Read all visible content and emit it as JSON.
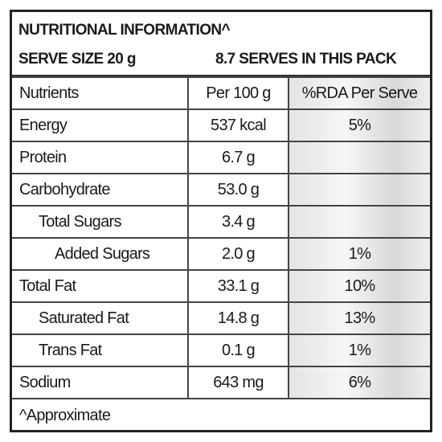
{
  "header": {
    "title": "NUTRITIONAL INFORMATION^",
    "serve_size": "SERVE SIZE 20 g",
    "serves": "8.7 SERVES IN THIS PACK"
  },
  "table": {
    "columns": [
      "Nutrients",
      "Per 100 g",
      "%RDA Per Serve"
    ],
    "rows": [
      [
        "Energy",
        "537 kcal",
        "5%"
      ],
      [
        "Protein",
        "6.7 g",
        null
      ],
      [
        "Carbohydrate",
        "53.0 g",
        null
      ],
      [
        "Total Sugars",
        "3.4 g",
        null
      ],
      [
        "Added Sugars",
        "2.0 g",
        "1%"
      ],
      [
        "Total Fat",
        "33.1 g",
        "10%"
      ],
      [
        "Saturated Fat",
        "14.8 g",
        "13%"
      ],
      [
        "Trans Fat",
        "0.1 g",
        "1%"
      ],
      [
        "Sodium",
        "643 mg",
        "6%"
      ]
    ]
  },
  "footnote": "^Approximate"
}
